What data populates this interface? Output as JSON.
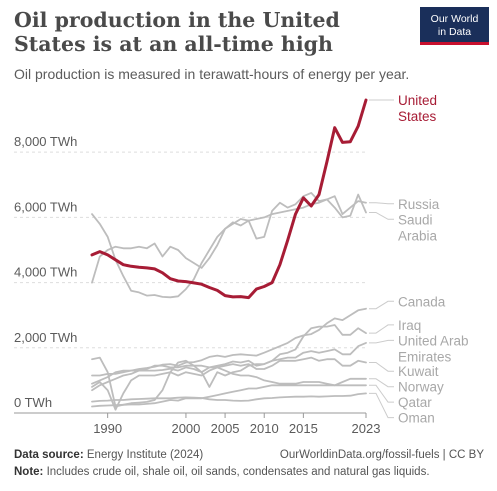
{
  "header": {
    "title": "Oil production in the United States is at an all-time high",
    "subtitle": "Oil production is measured in terawatt-hours of energy per year.",
    "logo_line1": "Our World",
    "logo_line2": "in Data"
  },
  "footer": {
    "source_label": "Data source:",
    "source_text": "Energy Institute (2024)",
    "url": "OurWorldinData.org/fossil-fuels | CC BY",
    "note_label": "Note:",
    "note_text": "Includes crude oil, shale oil, oil sands, condensates and natural gas liquids."
  },
  "colors": {
    "highlight": "#a71c35",
    "muted": "#bdbdbd",
    "grid": "#dddddd",
    "text": "#5b5b5b"
  },
  "chart_data": {
    "type": "line",
    "title": "Oil production in the United States is at an all-time high",
    "subtitle": "Oil production is measured in terawatt-hours of energy per year.",
    "xlabel": "",
    "ylabel": "",
    "xlim": [
      1988,
      2023
    ],
    "ylim": [
      0,
      9600
    ],
    "x_ticks": [
      1990,
      2000,
      2005,
      2010,
      2015,
      2023
    ],
    "y_ticks": [
      {
        "value": 0,
        "label": "0 TWh"
      },
      {
        "value": 2000,
        "label": "2,000 TWh"
      },
      {
        "value": 4000,
        "label": "4,000 TWh"
      },
      {
        "value": 6000,
        "label": "6,000 TWh"
      },
      {
        "value": 8000,
        "label": "8,000 TWh"
      }
    ],
    "grid": "horizontal dashed",
    "legend": "right, labels at line ends",
    "x": [
      1988,
      1989,
      1990,
      1991,
      1992,
      1993,
      1994,
      1995,
      1996,
      1997,
      1998,
      1999,
      2000,
      2001,
      2002,
      2003,
      2004,
      2005,
      2006,
      2007,
      2008,
      2009,
      2010,
      2011,
      2012,
      2013,
      2014,
      2015,
      2016,
      2017,
      2018,
      2019,
      2020,
      2021,
      2022,
      2023
    ],
    "series": [
      {
        "name": "United States",
        "highlight": true,
        "label_value": 9600,
        "values": [
          4850,
          4950,
          4850,
          4700,
          4550,
          4500,
          4470,
          4450,
          4420,
          4300,
          4120,
          4050,
          4030,
          3990,
          3950,
          3850,
          3760,
          3600,
          3560,
          3570,
          3540,
          3800,
          3880,
          4000,
          4550,
          5300,
          6100,
          6600,
          6350,
          6700,
          7700,
          8750,
          8300,
          8320,
          8800,
          9600
        ]
      },
      {
        "name": "Russia",
        "label_value": 6300,
        "values": [
          6100,
          5800,
          5400,
          4700,
          4200,
          3750,
          3700,
          3600,
          3620,
          3560,
          3550,
          3580,
          3800,
          4100,
          4600,
          5000,
          5400,
          5650,
          5800,
          5950,
          5900,
          5950,
          6000,
          6100,
          6150,
          6200,
          6250,
          6300,
          6400,
          6450,
          6550,
          6650,
          6100,
          6300,
          6500,
          6450
        ]
      },
      {
        "name": "Saudi Arabia",
        "label_value": 6150,
        "values": [
          4000,
          4800,
          5000,
          5100,
          5050,
          5050,
          5100,
          5050,
          5200,
          4800,
          5100,
          5000,
          4750,
          4600,
          4450,
          4750,
          5150,
          5650,
          5850,
          5750,
          5900,
          5350,
          5400,
          6200,
          6450,
          6300,
          6400,
          6650,
          6750,
          6500,
          6550,
          6300,
          6000,
          6050,
          6700,
          6150
        ]
      },
      {
        "name": "Canada",
        "label_value": 3200,
        "values": [
          1150,
          1150,
          1200,
          1200,
          1250,
          1300,
          1350,
          1380,
          1420,
          1480,
          1500,
          1450,
          1550,
          1560,
          1620,
          1720,
          1760,
          1720,
          1780,
          1800,
          1780,
          1760,
          1850,
          1950,
          2050,
          2150,
          2300,
          2380,
          2420,
          2550,
          2750,
          2900,
          2850,
          3000,
          3150,
          3200
        ]
      },
      {
        "name": "Iraq",
        "label_value": 2450,
        "values": [
          1650,
          1700,
          1250,
          200,
          250,
          300,
          320,
          340,
          400,
          700,
          1250,
          1550,
          1600,
          1450,
          1250,
          800,
          1250,
          1150,
          1250,
          1300,
          1450,
          1500,
          1500,
          1600,
          1800,
          1850,
          1950,
          2350,
          2600,
          2650,
          2650,
          2700,
          2400,
          2400,
          2600,
          2450
        ]
      },
      {
        "name": "United Arab Emirates",
        "label_value": 2150,
        "values": [
          900,
          1000,
          1100,
          1250,
          1300,
          1300,
          1300,
          1300,
          1300,
          1320,
          1360,
          1300,
          1400,
          1350,
          1250,
          1400,
          1450,
          1500,
          1580,
          1550,
          1600,
          1450,
          1500,
          1600,
          1650,
          1700,
          1700,
          1850,
          1900,
          1850,
          1900,
          1950,
          1800,
          1800,
          2050,
          2150
        ]
      },
      {
        "name": "Kuwait",
        "label_value": 1550,
        "values": [
          800,
          950,
          700,
          100,
          600,
          1000,
          1150,
          1150,
          1150,
          1200,
          1250,
          1150,
          1250,
          1200,
          1150,
          1300,
          1400,
          1450,
          1500,
          1450,
          1500,
          1350,
          1350,
          1450,
          1600,
          1600,
          1600,
          1650,
          1700,
          1600,
          1650,
          1650,
          1450,
          1450,
          1600,
          1550
        ]
      },
      {
        "name": "Norway",
        "label_value": 1050,
        "values": [
          700,
          850,
          950,
          1050,
          1150,
          1200,
          1300,
          1350,
          1450,
          1450,
          1400,
          1400,
          1450,
          1450,
          1450,
          1400,
          1400,
          1300,
          1200,
          1150,
          1150,
          1100,
          1000,
          950,
          900,
          900,
          900,
          950,
          950,
          950,
          900,
          850,
          950,
          1050,
          1050,
          1050
        ]
      },
      {
        "name": "Qatar",
        "label_value": 850,
        "values": [
          200,
          220,
          230,
          240,
          250,
          260,
          260,
          280,
          300,
          350,
          400,
          380,
          450,
          450,
          450,
          500,
          550,
          600,
          650,
          700,
          750,
          750,
          800,
          850,
          850,
          850,
          850,
          850,
          850,
          850,
          850,
          850,
          850,
          850,
          850,
          850
        ]
      },
      {
        "name": "Oman",
        "label_value": 600,
        "values": [
          350,
          370,
          380,
          400,
          400,
          420,
          430,
          440,
          450,
          450,
          450,
          470,
          480,
          470,
          460,
          420,
          400,
          400,
          380,
          370,
          380,
          420,
          450,
          460,
          480,
          490,
          500,
          500,
          510,
          500,
          510,
          520,
          520,
          530,
          580,
          600
        ]
      }
    ]
  }
}
